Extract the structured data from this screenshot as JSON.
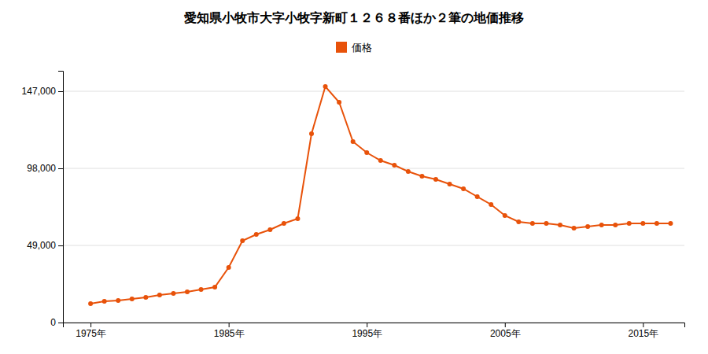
{
  "chart_data": {
    "type": "line",
    "title": "愛知県小牧市大字小牧字新町１２６８番ほか２筆の地価推移",
    "x": [
      1975,
      1976,
      1977,
      1978,
      1979,
      1980,
      1981,
      1982,
      1983,
      1984,
      1985,
      1986,
      1987,
      1988,
      1989,
      1990,
      1991,
      1992,
      1993,
      1994,
      1995,
      1996,
      1997,
      1998,
      1999,
      2000,
      2001,
      2002,
      2003,
      2004,
      2005,
      2006,
      2007,
      2008,
      2009,
      2010,
      2011,
      2012,
      2013,
      2014,
      2015,
      2016,
      2017
    ],
    "series": [
      {
        "name": "価格",
        "color": "#e8520a",
        "marker": "circle",
        "values": [
          12000,
          13500,
          14000,
          15000,
          16000,
          17500,
          18500,
          19500,
          21000,
          22500,
          35000,
          52000,
          56000,
          59000,
          63000,
          66000,
          120000,
          150000,
          140000,
          115000,
          108000,
          103000,
          100000,
          96000,
          93000,
          91000,
          88000,
          85000,
          80000,
          75000,
          68000,
          64000,
          63000,
          63000,
          62000,
          60000,
          61000,
          62000,
          62000,
          63000,
          63000,
          63000,
          63000
        ]
      }
    ],
    "xlim": [
      1973,
      2018
    ],
    "xticks": [
      {
        "value": 1975,
        "label": "1975年"
      },
      {
        "value": 1985,
        "label": "1985年"
      },
      {
        "value": 1995,
        "label": "1995年"
      },
      {
        "value": 2005,
        "label": "2005年"
      },
      {
        "value": 2015,
        "label": "2015年"
      }
    ],
    "ylim": [
      0,
      160000
    ],
    "yticks": [
      0,
      {
        "value": 49000,
        "label": "49,000"
      },
      {
        "value": 98000,
        "label": "98,000"
      },
      {
        "value": 147000,
        "label": "147,000"
      }
    ],
    "grid": true,
    "legend": "top"
  }
}
